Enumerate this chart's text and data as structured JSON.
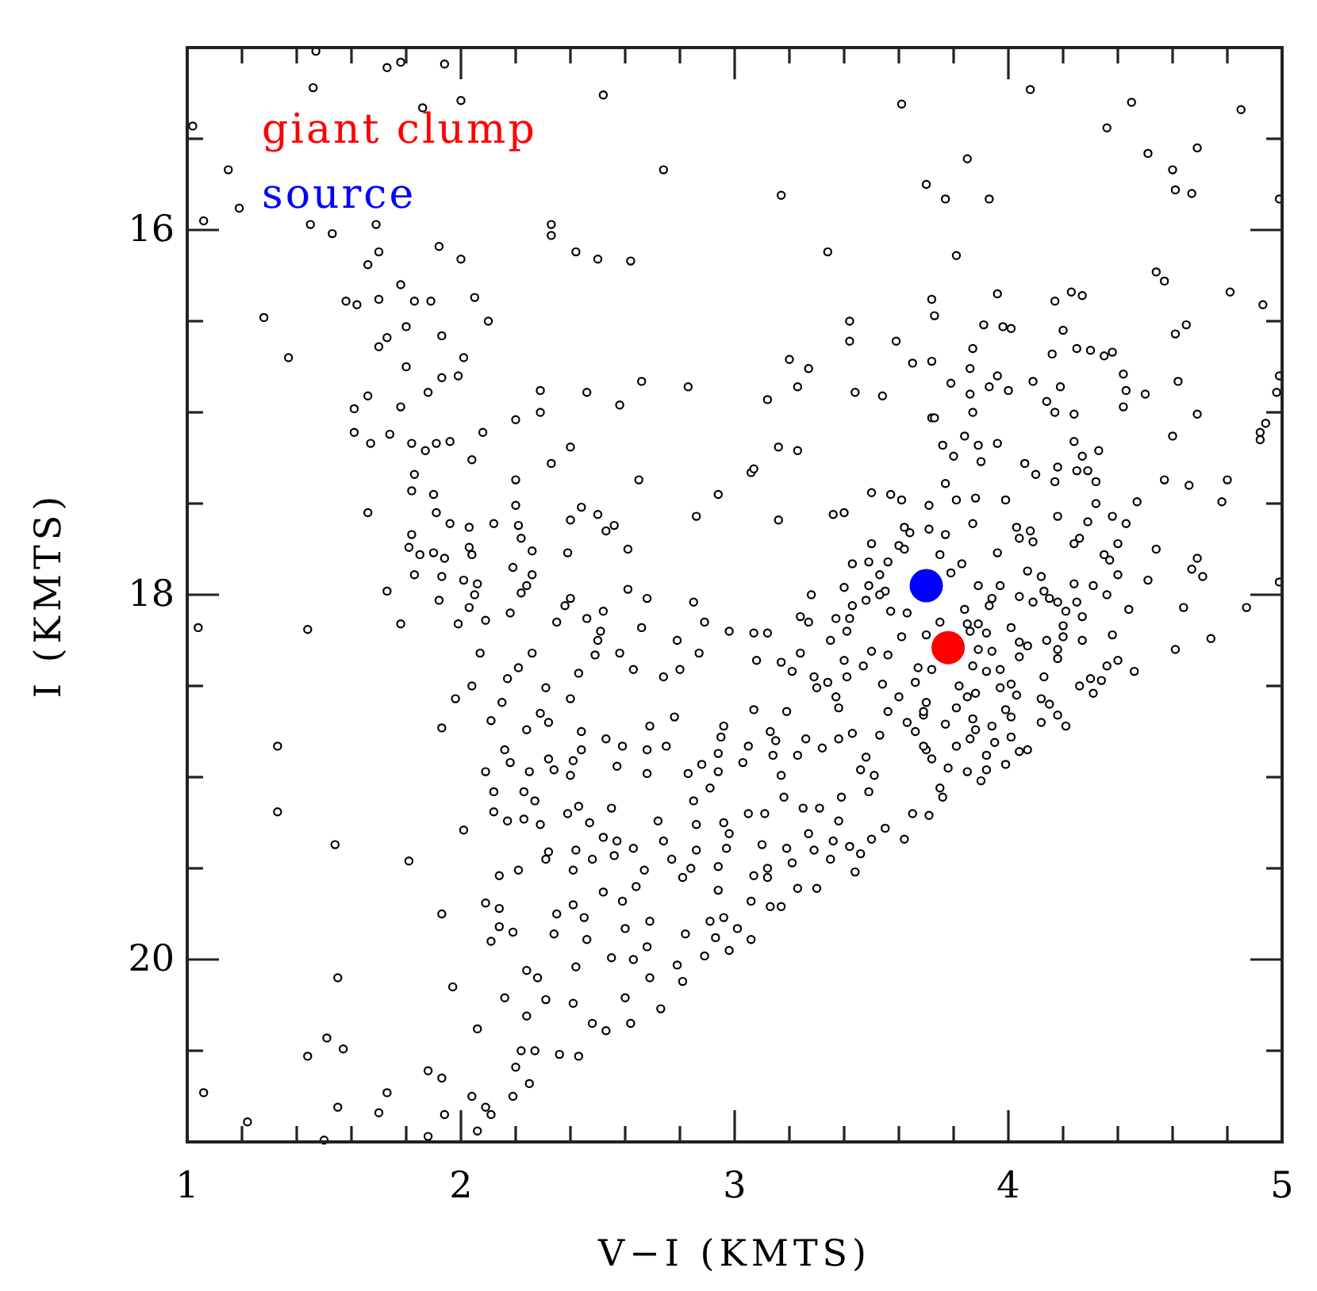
{
  "chart_data": {
    "type": "scatter",
    "xlabel": "V−I (KMTS)",
    "ylabel": "I (KMTS)",
    "xlim": [
      1,
      5
    ],
    "ylim": [
      21,
      15
    ],
    "xticks": [
      1,
      {
        "value": 1.2,
        "label": null
      },
      {
        "value": 1.4,
        "label": null
      },
      {
        "value": 1.6,
        "label": null
      },
      {
        "value": 1.8,
        "label": null
      },
      2,
      {
        "value": 2.2,
        "label": null
      },
      {
        "value": 2.4,
        "label": null
      },
      {
        "value": 2.6,
        "label": null
      },
      {
        "value": 2.8,
        "label": null
      },
      3,
      {
        "value": 3.2,
        "label": null
      },
      {
        "value": 3.4,
        "label": null
      },
      {
        "value": 3.6,
        "label": null
      },
      {
        "value": 3.8,
        "label": null
      },
      4,
      {
        "value": 4.2,
        "label": null
      },
      {
        "value": 4.4,
        "label": null
      },
      {
        "value": 4.6,
        "label": null
      },
      {
        "value": 4.8,
        "label": null
      },
      5
    ],
    "yticks": [
      {
        "value": 15.5,
        "label": null
      },
      16,
      {
        "value": 16.5,
        "label": null
      },
      {
        "value": 17,
        "label": null
      },
      {
        "value": 17.5,
        "label": null
      },
      18,
      {
        "value": 18.5,
        "label": null
      },
      {
        "value": 19,
        "label": null
      },
      {
        "value": 19.5,
        "label": null
      },
      20,
      {
        "value": 20.5,
        "label": null
      }
    ],
    "marker": "circle",
    "legend": "top left",
    "series": [
      {
        "color": "#000000",
        "x": [
          1.47,
          1.73,
          1.78,
          1.94,
          1.46,
          1.86,
          2.0,
          1.02,
          1.15,
          1.06,
          1.19,
          1.45,
          1.69,
          1.53,
          1.7,
          1.66,
          1.92,
          2.0,
          1.78,
          1.58,
          1.62,
          1.7,
          1.83,
          1.89,
          2.05,
          1.28,
          2.1,
          1.8,
          1.73,
          1.7,
          1.93,
          1.37,
          2.01,
          1.8,
          1.93,
          1.99,
          1.88,
          1.66,
          1.61,
          1.78,
          2.29,
          2.29,
          2.2,
          1.61,
          1.74,
          1.67,
          1.82,
          1.91,
          1.96,
          1.87,
          2.08,
          2.04,
          2.33,
          1.83,
          2.2,
          1.82,
          1.9,
          1.66,
          1.91,
          2.2,
          1.96,
          2.03,
          2.12,
          2.21,
          2.22,
          1.82,
          1.81,
          1.85,
          1.9,
          1.94,
          2.03,
          2.04,
          2.26,
          1.83,
          1.93,
          2.01,
          2.06,
          2.19,
          2.26,
          2.24,
          2.22,
          1.73,
          2.52,
          2.74,
          3.17,
          3.61,
          3.7,
          2.33,
          2.33,
          2.42,
          2.5,
          2.62,
          3.34,
          3.72,
          3.73,
          3.42,
          3.42,
          3.59,
          3.65,
          3.72,
          3.2,
          3.27,
          3.23,
          3.12,
          3.44,
          3.54,
          3.72,
          2.46,
          2.66,
          2.58,
          2.83,
          2.4,
          2.65,
          3.06,
          3.07,
          3.16,
          3.23,
          2.94,
          2.44,
          2.4,
          2.5,
          2.56,
          2.53,
          2.86,
          3.16,
          2.61,
          2.39,
          2.61,
          2.68,
          2.4,
          3.5,
          3.57,
          3.61,
          3.36,
          3.4,
          3.5,
          3.43,
          3.49,
          3.56,
          3.62,
          3.64,
          3.6,
          3.62,
          3.53,
          3.49,
          3.4,
          3.55,
          3.28,
          4.08,
          4.45,
          4.36,
          4.85,
          4.51,
          4.69,
          4.6,
          4.61,
          4.67,
          4.99,
          3.85,
          3.77,
          3.93,
          3.81,
          4.54,
          4.57,
          4.81,
          4.93,
          3.96,
          4.17,
          4.23,
          4.27,
          3.91,
          3.98,
          4.01,
          4.2,
          4.61,
          4.65,
          3.87,
          3.86,
          4.16,
          4.25,
          4.3,
          4.35,
          4.38,
          4.42,
          4.62,
          4.99,
          4.98,
          3.79,
          3.86,
          3.93,
          3.96,
          4.0,
          4.09,
          4.14,
          4.19,
          4.17,
          4.24,
          4.43,
          4.42,
          4.5,
          4.69,
          4.92,
          4.92,
          4.94,
          3.73,
          3.87,
          3.76,
          3.84,
          3.89,
          3.96,
          3.8,
          3.9,
          4.06,
          4.1,
          4.18,
          4.17,
          4.24,
          4.27,
          4.25,
          4.29,
          4.32,
          4.33,
          4.57,
          4.66,
          4.8,
          4.6,
          4.78,
          4.47,
          4.32,
          4.18,
          4.38,
          4.43,
          4.29,
          4.03,
          4.08,
          4.04,
          4.09,
          4.26,
          4.24,
          4.4,
          3.99,
          3.87,
          3.96,
          4.54,
          4.69,
          4.67,
          4.71,
          4.35,
          4.37,
          4.4,
          4.51,
          4.99,
          3.77,
          3.71,
          3.81,
          3.88,
          3.71,
          3.77,
          3.75,
          3.83,
          3.79,
          3.89,
          3.97,
          3.94,
          4.07,
          4.12,
          4.13,
          4.24,
          4.31,
          4.36,
          4.64,
          4.87,
          4.74,
          4.61,
          4.44,
          4.38,
          4.4,
          4.46,
          4.36,
          4.34,
          4.31,
          4.3,
          4.26,
          4.27,
          4.2,
          4.2,
          4.27,
          4.25,
          4.18,
          4.14,
          4.18,
          4.18,
          4.13,
          4.12,
          4.15,
          4.12,
          4.18,
          4.21,
          4.07,
          4.04,
          3.99,
          3.92,
          3.9,
          3.85,
          3.92,
          3.95,
          3.78,
          3.76,
          3.75,
          3.71,
          3.81,
          3.86,
          3.72,
          3.7,
          4.01,
          4.03,
          3.99,
          4.01,
          3.94,
          3.88,
          3.87,
          3.85,
          3.88,
          3.81,
          3.82,
          3.77,
          3.7,
          3.69,
          3.72,
          3.87,
          3.92,
          3.97,
          3.97,
          4.01,
          4.04,
          4.07,
          4.04,
          3.92,
          3.89,
          3.94,
          3.85,
          3.86,
          3.89,
          4.01,
          3.93,
          4.04,
          4.09,
          4.15,
          4.21,
          3.84,
          3.75,
          3.7,
          1.04,
          1.44,
          1.33,
          1.33,
          1.54,
          1.81,
          1.93,
          1.55,
          1.97,
          1.51,
          1.57,
          1.44,
          1.06,
          1.22,
          1.5,
          1.55,
          1.7,
          1.73,
          1.88,
          1.93,
          1.94,
          1.88,
          2.06,
          2.04,
          2.09,
          2.11,
          2.06,
          2.19,
          2.25,
          2.2,
          2.22,
          2.27,
          2.24,
          2.16,
          2.31,
          2.24,
          2.28,
          2.09,
          2.14,
          2.14,
          2.11,
          2.19,
          2.14,
          2.21,
          2.31,
          2.32,
          2.01,
          2.09,
          2.12,
          2.12,
          2.17,
          2.23,
          2.29,
          2.27,
          2.23,
          2.18,
          2.25,
          2.16,
          2.32,
          2.34,
          1.93,
          2.11,
          2.24,
          2.32,
          1.98,
          2.15,
          2.29,
          2.04,
          2.31,
          2.17,
          2.21,
          2.07,
          2.26,
          1.78,
          1.99,
          2.09,
          2.18,
          1.92,
          2.03,
          2.05,
          2.38,
          2.35,
          2.46,
          2.52,
          2.51,
          2.5,
          2.49,
          2.58,
          2.66,
          2.63,
          2.74,
          2.8,
          2.79,
          2.87,
          2.85,
          2.89,
          2.43,
          2.4,
          2.44,
          2.44,
          2.41,
          2.4,
          2.53,
          2.59,
          2.57,
          2.68,
          2.75,
          2.68,
          2.69,
          2.34,
          2.46,
          2.6,
          2.69,
          2.68,
          2.63,
          2.55,
          2.42,
          2.41,
          2.48,
          2.53,
          2.62,
          2.36,
          2.43,
          2.6,
          2.69,
          2.73,
          2.79,
          2.81,
          2.82,
          2.89,
          2.98,
          2.93,
          3.01,
          3.06,
          2.91,
          2.96,
          2.94,
          2.94,
          2.84,
          2.86,
          2.86,
          2.96,
          2.98,
          2.97,
          2.74,
          2.77,
          2.81,
          2.72,
          2.67,
          2.64,
          2.57,
          2.56,
          2.63,
          2.52,
          2.39,
          2.43,
          2.47,
          2.55,
          2.42,
          2.41,
          2.48,
          2.52,
          2.59,
          2.35,
          2.41,
          2.45,
          2.98,
          3.07,
          3.12,
          3.08,
          3.17,
          3.21,
          3.24,
          3.24,
          3.27,
          3.35,
          3.37,
          3.42,
          3.41,
          3.43,
          3.48,
          3.29,
          3.3,
          3.34,
          3.37,
          3.38,
          3.4,
          3.41,
          3.47,
          3.5,
          3.56,
          3.61,
          3.63,
          3.57,
          3.53,
          3.54,
          3.56,
          3.6,
          3.63,
          3.66,
          3.66,
          3.67,
          3.69,
          3.69,
          3.19,
          3.07,
          2.96,
          2.95,
          2.94,
          2.94,
          2.91,
          2.88,
          2.85,
          2.83,
          2.78,
          3.05,
          3.03,
          3.13,
          3.15,
          3.14,
          3.26,
          3.23,
          3.32,
          3.38,
          3.43,
          3.53,
          3.48,
          3.46,
          3.51,
          3.49,
          3.39,
          3.05,
          3.11,
          3.17,
          3.18,
          3.25,
          3.31,
          3.38,
          3.27,
          3.29,
          3.36,
          3.42,
          3.46,
          3.44,
          3.5,
          3.55,
          3.62,
          3.65,
          3.1,
          3.12,
          3.12,
          3.19,
          3.21,
          3.07,
          3.06,
          3.13,
          3.17,
          3.23,
          3.3,
          3.35
        ],
        "values": [
          15.02,
          15.11,
          15.08,
          15.09,
          15.22,
          15.33,
          15.29,
          15.43,
          15.67,
          15.95,
          15.88,
          15.97,
          15.97,
          16.02,
          16.12,
          16.19,
          16.09,
          16.16,
          16.3,
          16.39,
          16.41,
          16.38,
          16.39,
          16.39,
          16.37,
          16.48,
          16.5,
          16.53,
          16.59,
          16.64,
          16.58,
          16.7,
          16.7,
          16.75,
          16.81,
          16.8,
          16.89,
          16.91,
          16.98,
          16.97,
          16.88,
          17.0,
          17.04,
          17.11,
          17.12,
          17.17,
          17.17,
          17.17,
          17.16,
          17.21,
          17.11,
          17.26,
          17.28,
          17.34,
          17.37,
          17.43,
          17.45,
          17.55,
          17.55,
          17.51,
          17.61,
          17.63,
          17.61,
          17.62,
          17.69,
          17.67,
          17.74,
          17.78,
          17.77,
          17.8,
          17.74,
          17.78,
          17.76,
          17.89,
          17.9,
          17.92,
          17.94,
          17.85,
          17.89,
          17.95,
          17.99,
          17.98,
          15.26,
          15.67,
          15.81,
          15.31,
          15.75,
          15.97,
          16.03,
          16.12,
          16.16,
          16.17,
          16.12,
          16.38,
          16.47,
          16.5,
          16.61,
          16.61,
          16.73,
          16.72,
          16.71,
          16.76,
          16.86,
          16.93,
          16.89,
          16.91,
          17.03,
          16.89,
          16.83,
          16.96,
          16.86,
          17.19,
          17.37,
          17.33,
          17.31,
          17.19,
          17.21,
          17.45,
          17.52,
          17.59,
          17.56,
          17.62,
          17.65,
          17.57,
          17.59,
          17.75,
          17.77,
          17.97,
          18.02,
          18.02,
          17.44,
          17.45,
          17.48,
          17.56,
          17.55,
          17.72,
          17.83,
          17.82,
          17.82,
          17.63,
          17.66,
          17.73,
          17.75,
          17.89,
          17.95,
          17.96,
          17.98,
          18.0,
          15.23,
          15.3,
          15.44,
          15.34,
          15.58,
          15.55,
          15.67,
          15.78,
          15.8,
          15.83,
          15.61,
          15.83,
          15.83,
          16.14,
          16.23,
          16.28,
          16.34,
          16.41,
          16.35,
          16.39,
          16.34,
          16.36,
          16.52,
          16.53,
          16.54,
          16.55,
          16.57,
          16.52,
          16.65,
          16.76,
          16.68,
          16.65,
          16.66,
          16.69,
          16.67,
          16.79,
          16.83,
          16.8,
          16.89,
          16.84,
          16.9,
          16.86,
          16.8,
          16.88,
          16.83,
          16.94,
          16.86,
          17.0,
          17.01,
          16.88,
          16.97,
          16.9,
          17.01,
          17.11,
          17.15,
          17.06,
          17.03,
          17.0,
          17.18,
          17.13,
          17.18,
          17.17,
          17.24,
          17.27,
          17.28,
          17.34,
          17.3,
          17.38,
          17.16,
          17.24,
          17.32,
          17.32,
          17.38,
          17.21,
          17.37,
          17.4,
          17.37,
          17.13,
          17.49,
          17.49,
          17.5,
          17.57,
          17.57,
          17.61,
          17.6,
          17.63,
          17.65,
          17.69,
          17.71,
          17.69,
          17.72,
          17.72,
          17.48,
          17.61,
          17.77,
          17.75,
          17.8,
          17.86,
          17.9,
          17.78,
          17.81,
          17.89,
          17.92,
          17.93,
          17.39,
          17.51,
          17.48,
          17.47,
          17.64,
          17.67,
          17.78,
          17.83,
          17.88,
          17.95,
          17.95,
          18.02,
          17.87,
          17.9,
          17.98,
          17.94,
          17.95,
          18.0,
          18.07,
          18.07,
          18.24,
          18.3,
          18.08,
          18.22,
          18.36,
          18.42,
          18.39,
          18.47,
          18.54,
          18.46,
          18.5,
          18.25,
          18.23,
          18.17,
          18.12,
          18.04,
          18.04,
          18.25,
          18.3,
          18.35,
          18.45,
          18.57,
          18.6,
          18.7,
          18.66,
          18.72,
          18.85,
          18.86,
          18.93,
          18.96,
          19.02,
          18.97,
          18.88,
          18.81,
          18.95,
          19.11,
          19.06,
          19.21,
          18.83,
          18.79,
          18.9,
          18.85,
          18.78,
          18.55,
          18.63,
          18.67,
          18.72,
          18.74,
          18.68,
          18.56,
          18.54,
          18.62,
          18.5,
          18.71,
          18.59,
          18.66,
          18.41,
          18.39,
          18.42,
          18.41,
          18.51,
          18.49,
          18.34,
          18.28,
          18.26,
          18.21,
          18.3,
          18.31,
          18.16,
          18.2,
          18.16,
          18.18,
          18.06,
          18.01,
          18.04,
          18.02,
          18.09,
          18.08,
          18.15,
          18.22,
          18.18,
          18.19,
          18.83,
          19.19,
          19.37,
          19.46,
          19.75,
          20.1,
          20.15,
          20.43,
          20.49,
          20.53,
          20.73,
          20.89,
          20.99,
          20.81,
          20.84,
          20.73,
          20.61,
          20.65,
          20.85,
          20.97,
          20.94,
          20.75,
          20.81,
          20.85,
          20.38,
          20.75,
          20.68,
          20.59,
          20.5,
          20.5,
          20.31,
          20.21,
          20.22,
          20.06,
          20.1,
          19.69,
          19.72,
          19.82,
          19.9,
          19.85,
          19.54,
          19.51,
          19.45,
          19.41,
          19.29,
          18.97,
          19.08,
          19.19,
          19.24,
          19.23,
          19.26,
          19.13,
          19.08,
          18.92,
          18.97,
          18.85,
          18.9,
          18.96,
          18.73,
          18.69,
          18.74,
          18.7,
          18.57,
          18.59,
          18.65,
          18.5,
          18.51,
          18.46,
          18.4,
          18.32,
          18.32,
          18.16,
          18.16,
          18.14,
          18.1,
          18.03,
          18.07,
          18.0,
          18.06,
          18.15,
          18.13,
          18.09,
          18.2,
          18.25,
          18.33,
          18.32,
          18.18,
          18.41,
          18.45,
          18.41,
          18.25,
          18.32,
          18.04,
          18.15,
          18.43,
          18.57,
          18.75,
          18.85,
          18.91,
          18.99,
          18.79,
          18.83,
          18.94,
          18.85,
          18.83,
          18.98,
          18.72,
          19.86,
          19.89,
          19.83,
          19.79,
          19.93,
          20.0,
          19.99,
          20.04,
          20.24,
          20.35,
          20.39,
          20.35,
          20.52,
          20.53,
          20.21,
          20.1,
          20.27,
          20.03,
          20.12,
          19.86,
          19.98,
          19.95,
          19.88,
          19.83,
          19.89,
          19.79,
          19.77,
          19.62,
          19.49,
          19.5,
          19.4,
          19.26,
          19.25,
          19.31,
          19.39,
          19.35,
          19.45,
          19.55,
          19.24,
          19.51,
          19.6,
          19.35,
          19.43,
          19.39,
          19.33,
          19.2,
          19.16,
          19.25,
          19.17,
          19.4,
          19.51,
          19.45,
          19.63,
          19.68,
          19.75,
          19.7,
          19.77,
          18.2,
          18.21,
          18.21,
          18.36,
          18.37,
          18.42,
          18.32,
          18.12,
          18.15,
          18.25,
          18.13,
          18.13,
          18.2,
          18.06,
          18.03,
          18.45,
          18.51,
          18.48,
          18.56,
          18.62,
          18.36,
          18.45,
          18.39,
          18.31,
          18.33,
          18.23,
          18.1,
          18.09,
          18.0,
          18.49,
          18.64,
          18.56,
          18.7,
          18.75,
          18.48,
          18.4,
          18.64,
          18.83,
          18.64,
          18.63,
          18.72,
          18.78,
          18.87,
          18.97,
          19.06,
          18.93,
          19.13,
          18.98,
          18.67,
          18.83,
          18.92,
          18.75,
          18.8,
          18.88,
          18.79,
          18.88,
          18.84,
          18.79,
          18.76,
          18.77,
          18.89,
          18.96,
          18.99,
          19.08,
          19.11,
          19.2,
          19.2,
          18.99,
          19.11,
          19.17,
          19.17,
          19.24,
          19.31,
          19.4,
          19.35,
          19.38,
          19.42,
          19.52,
          19.34,
          19.28,
          19.34,
          19.2,
          19.37,
          19.5,
          19.55,
          19.39,
          19.47,
          19.54,
          19.68,
          19.71,
          19.71,
          19.61,
          19.61,
          19.45
        ]
      },
      {
        "name": "giant clump",
        "color": "#ff0000",
        "x": [
          3.78
        ],
        "values": [
          18.29
        ]
      },
      {
        "name": "source",
        "color": "#0000ff",
        "x": [
          3.7
        ],
        "values": [
          17.95
        ]
      }
    ]
  }
}
